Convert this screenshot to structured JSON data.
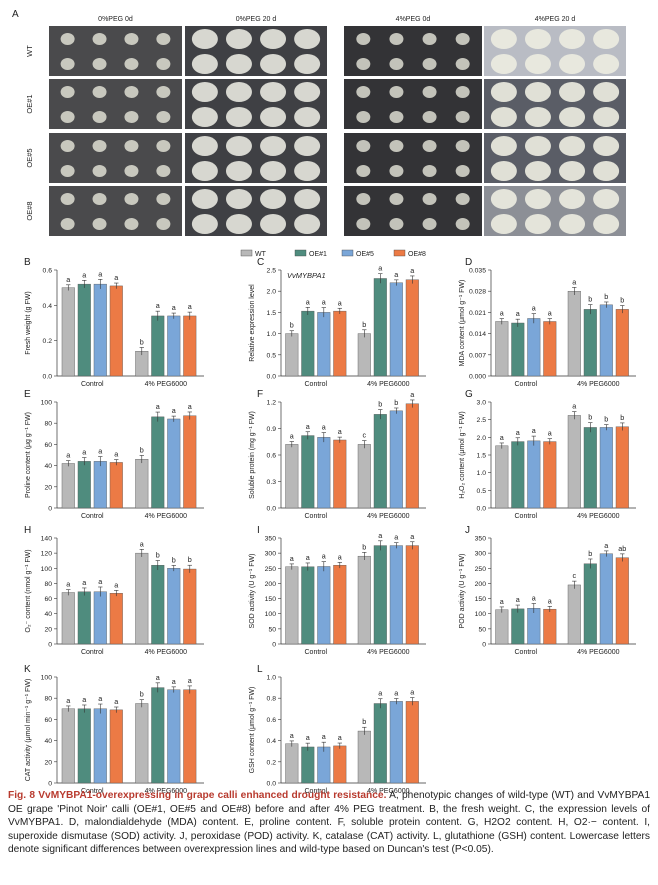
{
  "figure": {
    "panelA": {
      "letter": "A",
      "headers": [
        "0%PEG 0d",
        "0%PEG 20 d",
        "4%PEG 0d",
        "4%PEG 20 d"
      ],
      "row_labels": [
        "WT",
        "OE#1",
        "OE#5",
        "OE#8"
      ]
    },
    "legend": [
      {
        "label": "WT",
        "color": "#b8b8b8"
      },
      {
        "label": "OE#1",
        "color": "#4f8c7e"
      },
      {
        "label": "OE#5",
        "color": "#7aa6d8"
      },
      {
        "label": "OE#8",
        "color": "#ec7a45"
      }
    ],
    "groups": [
      "Control",
      "4% PEG6000"
    ]
  },
  "chart_data": [
    {
      "id": "B",
      "type": "bar",
      "title": "",
      "ylabel": "Fresh weight (g FW)",
      "ylim": [
        0,
        0.6
      ],
      "yticks": [
        "0.0",
        "0.2",
        "0.4",
        "0.6"
      ],
      "categories": [
        "Control",
        "4% PEG6000"
      ],
      "series": [
        {
          "name": "WT",
          "values": [
            0.5,
            0.14
          ],
          "letters": [
            "a",
            "b"
          ]
        },
        {
          "name": "OE#1",
          "values": [
            0.52,
            0.34
          ],
          "letters": [
            "a",
            "a"
          ]
        },
        {
          "name": "OE#5",
          "values": [
            0.52,
            0.34
          ],
          "letters": [
            "a",
            "a"
          ]
        },
        {
          "name": "OE#8",
          "values": [
            0.51,
            0.34
          ],
          "letters": [
            "a",
            "a"
          ]
        }
      ]
    },
    {
      "id": "C",
      "type": "bar",
      "title": "VvMYBPA1",
      "ylabel": "Relative expression level",
      "ylim": [
        0,
        2.5
      ],
      "yticks": [
        "0.0",
        "0.5",
        "1.0",
        "1.5",
        "2.0",
        "2.5"
      ],
      "categories": [
        "Control",
        "4% PEG6000"
      ],
      "series": [
        {
          "name": "WT",
          "values": [
            1.0,
            1.0
          ],
          "letters": [
            "b",
            "b"
          ]
        },
        {
          "name": "OE#1",
          "values": [
            1.53,
            2.3
          ],
          "letters": [
            "a",
            "a"
          ]
        },
        {
          "name": "OE#5",
          "values": [
            1.5,
            2.2
          ],
          "letters": [
            "a",
            "a"
          ]
        },
        {
          "name": "OE#8",
          "values": [
            1.53,
            2.27
          ],
          "letters": [
            "a",
            "a"
          ]
        }
      ]
    },
    {
      "id": "D",
      "type": "bar",
      "title": "",
      "ylabel": "MDA content (μmol g⁻¹ FW)",
      "ylim": [
        0,
        0.035
      ],
      "yticks": [
        "0.000",
        "0.007",
        "0.014",
        "0.021",
        "0.028",
        "0.035"
      ],
      "categories": [
        "Control",
        "4% PEG6000"
      ],
      "series": [
        {
          "name": "WT",
          "values": [
            0.018,
            0.028
          ],
          "letters": [
            "a",
            "a"
          ]
        },
        {
          "name": "OE#1",
          "values": [
            0.0175,
            0.022
          ],
          "letters": [
            "a",
            "b"
          ]
        },
        {
          "name": "OE#5",
          "values": [
            0.019,
            0.0235
          ],
          "letters": [
            "a",
            "b"
          ]
        },
        {
          "name": "OE#8",
          "values": [
            0.018,
            0.022
          ],
          "letters": [
            "a",
            "b"
          ]
        }
      ]
    },
    {
      "id": "E",
      "type": "bar",
      "title": "",
      "ylabel": "Proline content (μg g⁻¹ FW)",
      "ylim": [
        0,
        100
      ],
      "yticks": [
        "0",
        "20",
        "40",
        "60",
        "80",
        "100"
      ],
      "categories": [
        "Control",
        "4% PEG6000"
      ],
      "series": [
        {
          "name": "WT",
          "values": [
            42,
            46
          ],
          "letters": [
            "a",
            "b"
          ]
        },
        {
          "name": "OE#1",
          "values": [
            44,
            86
          ],
          "letters": [
            "a",
            "a"
          ]
        },
        {
          "name": "OE#5",
          "values": [
            44,
            84
          ],
          "letters": [
            "a",
            "a"
          ]
        },
        {
          "name": "OE#8",
          "values": [
            43,
            87
          ],
          "letters": [
            "a",
            "a"
          ]
        }
      ]
    },
    {
      "id": "F",
      "type": "bar",
      "title": "",
      "ylabel": "Soluble protein (mg g⁻¹ FW)",
      "ylim": [
        0,
        1.2
      ],
      "yticks": [
        "0.0",
        "0.3",
        "0.6",
        "0.9",
        "1.2"
      ],
      "categories": [
        "Control",
        "4% PEG6000"
      ],
      "series": [
        {
          "name": "WT",
          "values": [
            0.72,
            0.72
          ],
          "letters": [
            "a",
            "c"
          ]
        },
        {
          "name": "OE#1",
          "values": [
            0.82,
            1.06
          ],
          "letters": [
            "a",
            "b"
          ]
        },
        {
          "name": "OE#5",
          "values": [
            0.8,
            1.1
          ],
          "letters": [
            "a",
            "b"
          ]
        },
        {
          "name": "OE#8",
          "values": [
            0.77,
            1.18
          ],
          "letters": [
            "a",
            "a"
          ]
        }
      ]
    },
    {
      "id": "G",
      "type": "bar",
      "title": "",
      "ylabel": "H₂O₂ content (μmol g⁻¹ FW)",
      "ylim": [
        0,
        3.0
      ],
      "yticks": [
        "0.0",
        "0.5",
        "1.0",
        "1.5",
        "2.0",
        "2.5",
        "3.0"
      ],
      "categories": [
        "Control",
        "4% PEG6000"
      ],
      "series": [
        {
          "name": "WT",
          "values": [
            1.76,
            2.62
          ],
          "letters": [
            "a",
            "a"
          ]
        },
        {
          "name": "OE#1",
          "values": [
            1.88,
            2.28
          ],
          "letters": [
            "a",
            "b"
          ]
        },
        {
          "name": "OE#5",
          "values": [
            1.9,
            2.28
          ],
          "letters": [
            "a",
            "b"
          ]
        },
        {
          "name": "OE#8",
          "values": [
            1.88,
            2.3
          ],
          "letters": [
            "a",
            "b"
          ]
        }
      ]
    },
    {
      "id": "H",
      "type": "bar",
      "title": "",
      "ylabel": "O₂⁻ content (nmol g⁻¹ FW)",
      "ylim": [
        0,
        140
      ],
      "yticks": [
        "0",
        "20",
        "40",
        "60",
        "80",
        "100",
        "120",
        "140"
      ],
      "categories": [
        "Control",
        "4% PEG6000"
      ],
      "series": [
        {
          "name": "WT",
          "values": [
            68,
            120
          ],
          "letters": [
            "a",
            "a"
          ]
        },
        {
          "name": "OE#1",
          "values": [
            69,
            104
          ],
          "letters": [
            "a",
            "b"
          ]
        },
        {
          "name": "OE#5",
          "values": [
            69,
            100
          ],
          "letters": [
            "a",
            "b"
          ]
        },
        {
          "name": "OE#8",
          "values": [
            67,
            99
          ],
          "letters": [
            "a",
            "b"
          ]
        }
      ]
    },
    {
      "id": "I",
      "type": "bar",
      "title": "",
      "ylabel": "SOD activity (U g⁻¹ FW)",
      "ylim": [
        0,
        350
      ],
      "yticks": [
        "0",
        "50",
        "100",
        "150",
        "200",
        "250",
        "300",
        "350"
      ],
      "categories": [
        "Control",
        "4% PEG6000"
      ],
      "series": [
        {
          "name": "WT",
          "values": [
            255,
            290
          ],
          "letters": [
            "a",
            "b"
          ]
        },
        {
          "name": "OE#1",
          "values": [
            255,
            325
          ],
          "letters": [
            "a",
            "a"
          ]
        },
        {
          "name": "OE#5",
          "values": [
            256,
            325
          ],
          "letters": [
            "a",
            "a"
          ]
        },
        {
          "name": "OE#8",
          "values": [
            260,
            325
          ],
          "letters": [
            "a",
            "a"
          ]
        }
      ]
    },
    {
      "id": "J",
      "type": "bar",
      "title": "",
      "ylabel": "POD activity (U g⁻¹ FW)",
      "ylim": [
        0,
        350
      ],
      "yticks": [
        "0",
        "50",
        "100",
        "150",
        "200",
        "250",
        "300",
        "350"
      ],
      "categories": [
        "Control",
        "4% PEG6000"
      ],
      "series": [
        {
          "name": "WT",
          "values": [
            113,
            195
          ],
          "letters": [
            "a",
            "c"
          ]
        },
        {
          "name": "OE#1",
          "values": [
            116,
            265
          ],
          "letters": [
            "a",
            "b"
          ]
        },
        {
          "name": "OE#5",
          "values": [
            118,
            298
          ],
          "letters": [
            "a",
            "a"
          ]
        },
        {
          "name": "OE#8",
          "values": [
            115,
            285
          ],
          "letters": [
            "a",
            "ab"
          ]
        }
      ]
    },
    {
      "id": "K",
      "type": "bar",
      "title": "",
      "ylabel": "CAT activity (μmol min⁻¹ g⁻¹ FW)",
      "ylim": [
        0,
        100
      ],
      "yticks": [
        "0",
        "20",
        "40",
        "60",
        "80",
        "100"
      ],
      "categories": [
        "Control",
        "4% PEG6000"
      ],
      "series": [
        {
          "name": "WT",
          "values": [
            70,
            75
          ],
          "letters": [
            "a",
            "b"
          ]
        },
        {
          "name": "OE#1",
          "values": [
            70,
            90
          ],
          "letters": [
            "a",
            "a"
          ]
        },
        {
          "name": "OE#5",
          "values": [
            70,
            88
          ],
          "letters": [
            "a",
            "a"
          ]
        },
        {
          "name": "OE#8",
          "values": [
            69,
            88
          ],
          "letters": [
            "a",
            "a"
          ]
        }
      ]
    },
    {
      "id": "L",
      "type": "bar",
      "title": "",
      "ylabel": "GSH content (μmol g⁻¹ FW)",
      "ylim": [
        0,
        1.0
      ],
      "yticks": [
        "0.0",
        "0.2",
        "0.4",
        "0.6",
        "0.8",
        "1.0"
      ],
      "categories": [
        "Control",
        "4% PEG6000"
      ],
      "series": [
        {
          "name": "WT",
          "values": [
            0.37,
            0.49
          ],
          "letters": [
            "a",
            "b"
          ]
        },
        {
          "name": "OE#1",
          "values": [
            0.34,
            0.75
          ],
          "letters": [
            "a",
            "a"
          ]
        },
        {
          "name": "OE#5",
          "values": [
            0.34,
            0.77
          ],
          "letters": [
            "a",
            "a"
          ]
        },
        {
          "name": "OE#8",
          "values": [
            0.35,
            0.77
          ],
          "letters": [
            "a",
            "a"
          ]
        }
      ]
    }
  ],
  "caption": {
    "title": "Fig. 8 VvMYBPA1-overexpressing in grape calli enhanced drought resistance.",
    "body": "A, phenotypic changes of wild-type (WT) and VvMYBPA1 OE grape 'Pinot Noir' calli (OE#1, OE#5 and OE#8) before and after 4% PEG treatment. B, the fresh weight. C, the expression levels of VvMYBPA1. D, malondialdehyde (MDA) content. E, proline content. F, soluble protein content. G, H2O2 content. H, O2·− content. I, superoxide dismutase (SOD) activity. J, peroxidase (POD) activity. K, catalase (CAT) activity. L, glutathione (GSH) content. Lowercase letters denote significant differences between overexpression lines and wild-type based on Duncan's test (P<0.05)."
  }
}
